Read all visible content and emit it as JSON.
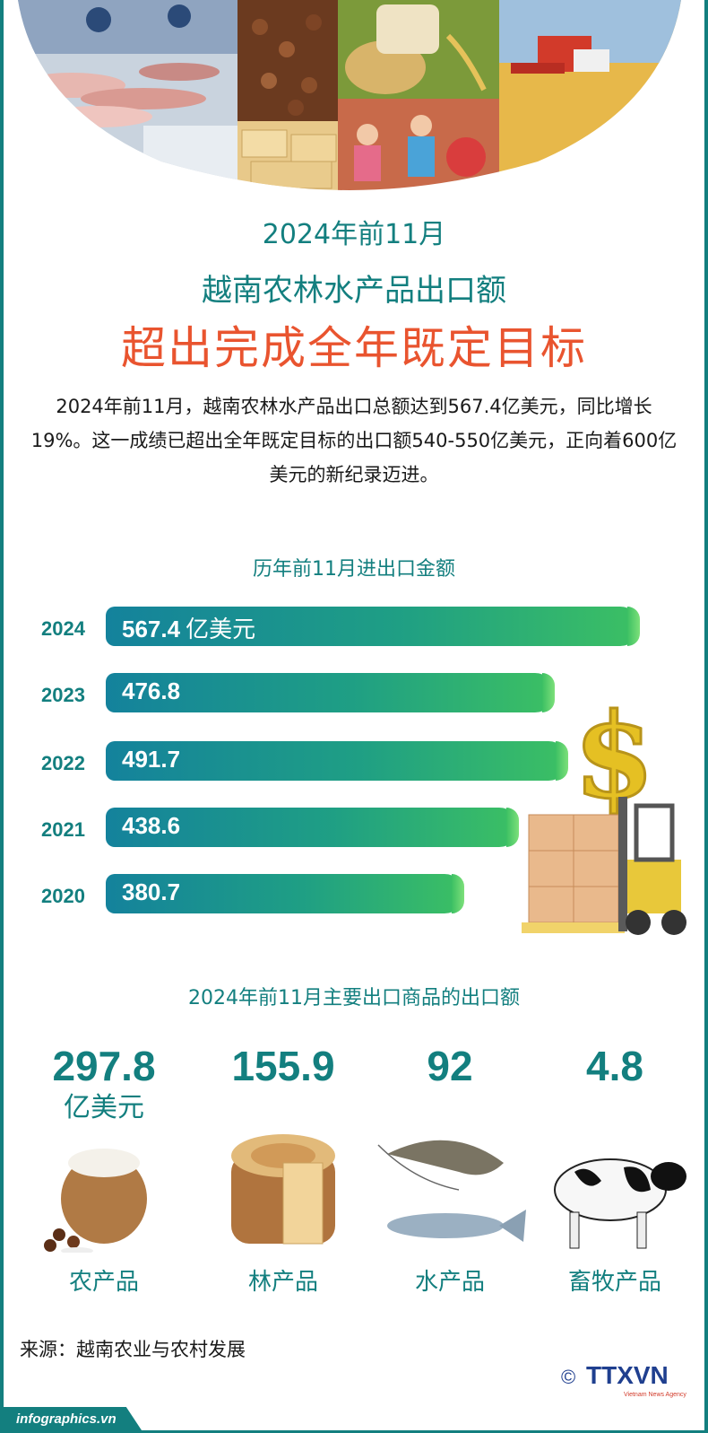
{
  "header": {
    "period": "2024年前11月",
    "subject": "越南农林水产品出口额",
    "headline": "超出完成全年既定目标"
  },
  "intro": {
    "text": "2024年前11月，越南农林水产品出口总额达到567.4亿美元，同比增长19%。这一成绩已超出全年既定目标的出口额540-550亿美元，正向着600亿美元的新纪录迈进。"
  },
  "chart_data": [
    {
      "type": "bar",
      "orientation": "horizontal",
      "title": "历年前11月进出口金额",
      "categories": [
        "2024",
        "2023",
        "2022",
        "2021",
        "2020"
      ],
      "values": [
        567.4,
        476.8,
        491.7,
        438.6,
        380.7
      ],
      "value_labels": [
        "567.4",
        "476.8",
        "491.7",
        "438.6",
        "380.7"
      ],
      "unit": "亿美元",
      "xlim": [
        0,
        567.4
      ],
      "grid": false
    },
    {
      "type": "table",
      "title": "2024年前11月主要出口商品的出口额",
      "categories": [
        "农产品",
        "林产品",
        "水产品",
        "畜牧产品"
      ],
      "values": [
        297.8,
        155.9,
        92,
        4.8
      ],
      "value_labels": [
        "297.8",
        "155.9",
        "92",
        "4.8"
      ],
      "unit": "亿美元",
      "icons": [
        "rice-sack-icon",
        "wood-log-icon",
        "shrimp-fish-icon",
        "cow-icon"
      ]
    }
  ],
  "source": "来源：越南农业与农村发展",
  "footer": {
    "site": "infographics.vn",
    "logo_text": "TTXVN",
    "logo_symbol": "©",
    "logo_subtext": "Vietnam News Agency"
  },
  "colors": {
    "teal": "#137f7f",
    "headline_red": "#e9542f",
    "bar_start": "#14829c",
    "bar_end": "#3cc063"
  }
}
